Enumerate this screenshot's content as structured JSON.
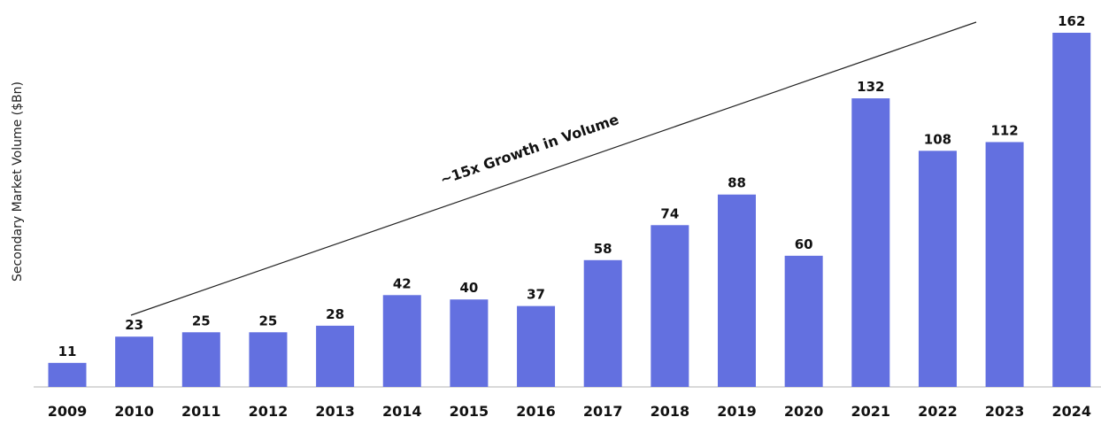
{
  "chart_data": {
    "type": "bar",
    "title": "",
    "xlabel": "",
    "ylabel": "Secondary Market Volume ($Bn)",
    "categories": [
      "2009",
      "2010",
      "2011",
      "2012",
      "2013",
      "2014",
      "2015",
      "2016",
      "2017",
      "2018",
      "2019",
      "2020",
      "2021",
      "2022",
      "2023",
      "2024"
    ],
    "values": [
      11,
      23,
      25,
      25,
      28,
      42,
      40,
      37,
      58,
      74,
      88,
      60,
      132,
      108,
      112,
      162
    ],
    "ylim": [
      0,
      162
    ],
    "grid": false,
    "bar_color": "#6370E0",
    "annotation": {
      "text": "~15x Growth in Volume",
      "from_category": "2010",
      "to_category": "2023"
    }
  }
}
